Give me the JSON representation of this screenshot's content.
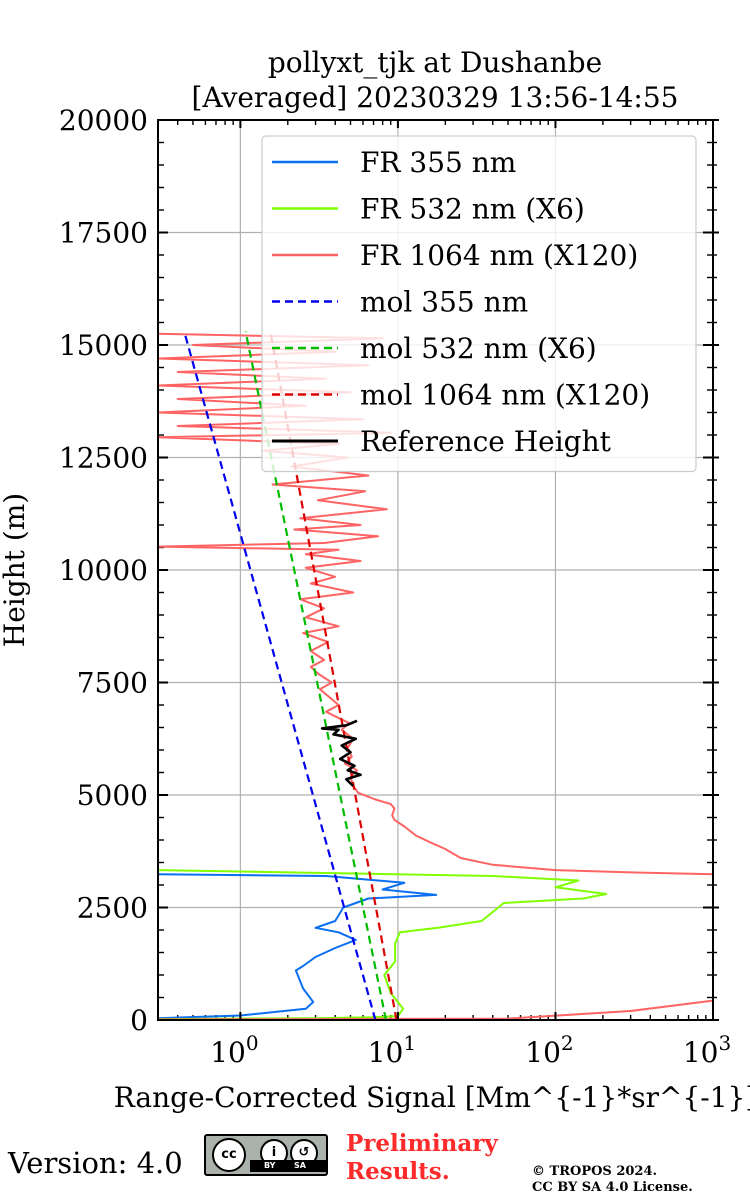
{
  "chart_data": {
    "type": "line",
    "title": [
      "pollyxt_tjk at Dushanbe",
      "[Averaged] 20230329 13:56-14:55"
    ],
    "xlabel": "Range-Corrected Signal",
    "xlabel_unit": "[Mm^{-1}*sr^{-1}]",
    "ylabel": "Height (m)",
    "xscale": "log",
    "xlim": [
      0.3,
      1000
    ],
    "ylim": [
      0,
      20000
    ],
    "x_ticks": [
      1,
      10,
      100,
      1000
    ],
    "x_tick_labels": [
      {
        "base": "10",
        "exp": "0"
      },
      {
        "base": "10",
        "exp": "1"
      },
      {
        "base": "10",
        "exp": "2"
      },
      {
        "base": "10",
        "exp": "3"
      }
    ],
    "y_ticks": [
      0,
      2500,
      5000,
      7500,
      10000,
      12500,
      15000,
      17500,
      20000
    ],
    "y_tick_labels": [
      "0",
      "2500",
      "5000",
      "7500",
      "10000",
      "12500",
      "15000",
      "17500",
      "20000"
    ],
    "grid": true,
    "legend_position": "top-right",
    "series": [
      {
        "name": "FR 355 nm",
        "color": "#0a6ff0",
        "style": "solid",
        "width": 2,
        "points": [
          [
            0.3,
            40
          ],
          [
            1.0,
            100
          ],
          [
            2.6,
            250
          ],
          [
            2.9,
            400
          ],
          [
            2.5,
            700
          ],
          [
            2.25,
            1100
          ],
          [
            2.5,
            1200
          ],
          [
            3.0,
            1400
          ],
          [
            4.0,
            1600
          ],
          [
            5.4,
            1780
          ],
          [
            4.2,
            1950
          ],
          [
            3.0,
            2050
          ],
          [
            4.0,
            2200
          ],
          [
            4.5,
            2500
          ],
          [
            6.5,
            2700
          ],
          [
            17.5,
            2780
          ],
          [
            8.0,
            2900
          ],
          [
            11.0,
            3050
          ],
          [
            3.5,
            3200
          ],
          [
            0.3,
            3240
          ]
        ]
      },
      {
        "name": "FR 532 nm (X6)",
        "color": "#7fff00",
        "style": "solid",
        "width": 2,
        "points": [
          [
            0.3,
            20
          ],
          [
            3.0,
            40
          ],
          [
            7.0,
            60
          ],
          [
            10.0,
            90
          ],
          [
            10.8,
            250
          ],
          [
            9.0,
            600
          ],
          [
            8.2,
            1000
          ],
          [
            9.6,
            1300
          ],
          [
            9.6,
            1700
          ],
          [
            10.3,
            1950
          ],
          [
            18.0,
            2050
          ],
          [
            34.0,
            2200
          ],
          [
            47.0,
            2600
          ],
          [
            150.0,
            2700
          ],
          [
            210.0,
            2800
          ],
          [
            100.0,
            2950
          ],
          [
            140.0,
            3100
          ],
          [
            40.0,
            3200
          ],
          [
            0.3,
            3330
          ]
        ]
      },
      {
        "name": "FR 1064 nm (X120)",
        "color": "#ff6464",
        "style": "solid",
        "width": 2,
        "points": [
          [
            0.3,
            10
          ],
          [
            50,
            30
          ],
          [
            300,
            200
          ],
          [
            1000,
            430
          ]
        ]
      },
      {
        "name": "",
        "color": "#ff6464",
        "style": "solid",
        "width": 2,
        "points": [
          [
            1000,
            3240
          ],
          [
            300,
            3280
          ],
          [
            100,
            3330
          ],
          [
            40,
            3450
          ],
          [
            25,
            3600
          ],
          [
            20,
            3800
          ],
          [
            16,
            3950
          ],
          [
            13,
            4100
          ],
          [
            11,
            4300
          ],
          [
            9.5,
            4450
          ],
          [
            9.2,
            4550
          ],
          [
            9.5,
            4700
          ],
          [
            9.0,
            4800
          ],
          [
            7.2,
            4900
          ],
          [
            5.6,
            5050
          ],
          [
            5.2,
            5200
          ],
          [
            5.0,
            5400
          ],
          [
            5.5,
            5550
          ],
          [
            4.6,
            5700
          ],
          [
            5.1,
            5850
          ],
          [
            4.8,
            6050
          ],
          [
            5.2,
            6250
          ],
          [
            4.4,
            6450
          ],
          [
            4.9,
            6600
          ],
          [
            4.0,
            6750
          ],
          [
            3.5,
            6850
          ],
          [
            4.2,
            7000
          ],
          [
            3.6,
            7200
          ],
          [
            3.2,
            7350
          ],
          [
            3.8,
            7500
          ],
          [
            3.1,
            7700
          ],
          [
            2.8,
            7850
          ],
          [
            3.4,
            8000
          ],
          [
            2.8,
            8200
          ],
          [
            3.6,
            8400
          ],
          [
            2.5,
            8600
          ],
          [
            4.2,
            8750
          ],
          [
            2.6,
            8950
          ],
          [
            3.4,
            9150
          ],
          [
            2.4,
            9350
          ],
          [
            5.2,
            9500
          ],
          [
            2.8,
            9700
          ],
          [
            4.0,
            9850
          ],
          [
            2.6,
            10050
          ],
          [
            5.8,
            10200
          ],
          [
            2.6,
            10350
          ],
          [
            4.2,
            10450
          ],
          [
            0.3,
            10520
          ],
          [
            3.4,
            10600
          ],
          [
            7.5,
            10750
          ],
          [
            2.2,
            10900
          ],
          [
            5.8,
            11000
          ],
          [
            2.4,
            11150
          ],
          [
            8.5,
            11350
          ],
          [
            3.1,
            11550
          ],
          [
            6.2,
            11750
          ],
          [
            1.6,
            11900
          ],
          [
            6.5,
            12100
          ],
          [
            2.1,
            12300
          ],
          [
            4.8,
            12500
          ],
          [
            1.4,
            12650
          ],
          [
            4.2,
            12800
          ],
          [
            0.3,
            12950
          ],
          [
            9.0,
            13050
          ],
          [
            0.4,
            13200
          ],
          [
            6.0,
            13350
          ],
          [
            0.3,
            13500
          ],
          [
            2.6,
            13650
          ],
          [
            0.4,
            13800
          ],
          [
            5.0,
            13950
          ],
          [
            0.3,
            14100
          ],
          [
            3.5,
            14250
          ],
          [
            0.4,
            14400
          ],
          [
            6.5,
            14550
          ],
          [
            0.3,
            14700
          ],
          [
            4.0,
            14850
          ],
          [
            0.5,
            15000
          ],
          [
            8.0,
            15150
          ],
          [
            0.3,
            15250
          ]
        ]
      },
      {
        "name": "mol 355 nm",
        "color": "#0000ee",
        "style": "dashed",
        "width": 2.2,
        "points": [
          [
            7.2,
            0
          ],
          [
            0.44,
            15300
          ]
        ]
      },
      {
        "name": "mol 532 nm (X6)",
        "color": "#00bb00",
        "style": "dashed",
        "width": 2.2,
        "points": [
          [
            8.4,
            0
          ],
          [
            1.08,
            15300
          ]
        ]
      },
      {
        "name": "mol 1064 nm (X120)",
        "color": "#dd0000",
        "style": "dashed",
        "width": 2.2,
        "points": [
          [
            9.8,
            0
          ],
          [
            1.55,
            15300
          ]
        ]
      },
      {
        "name": "Reference Height",
        "color": "#000000",
        "style": "solid",
        "width": 2.6,
        "points": [
          [
            5.2,
            5200
          ],
          [
            4.7,
            5350
          ],
          [
            5.8,
            5450
          ],
          [
            4.8,
            5550
          ],
          [
            5.3,
            5650
          ],
          [
            4.3,
            5800
          ],
          [
            5.0,
            5950
          ],
          [
            4.4,
            6100
          ],
          [
            5.4,
            6250
          ],
          [
            3.9,
            6350
          ],
          [
            4.2,
            6450
          ],
          [
            3.3,
            6480
          ],
          [
            4.7,
            6550
          ],
          [
            5.5,
            6650
          ]
        ]
      }
    ]
  },
  "footer": {
    "version": "Version: 4.0",
    "license_badge": {
      "icon": "cc-by-sa-icon",
      "text_by": "BY",
      "text_sa": "SA",
      "text_cc": "cc"
    },
    "preliminary": [
      "Preliminary",
      "Results."
    ],
    "preliminary_color": "#ff2a2a",
    "copyright": [
      "© TROPOS 2024.",
      "CC BY SA 4.0 License."
    ]
  }
}
